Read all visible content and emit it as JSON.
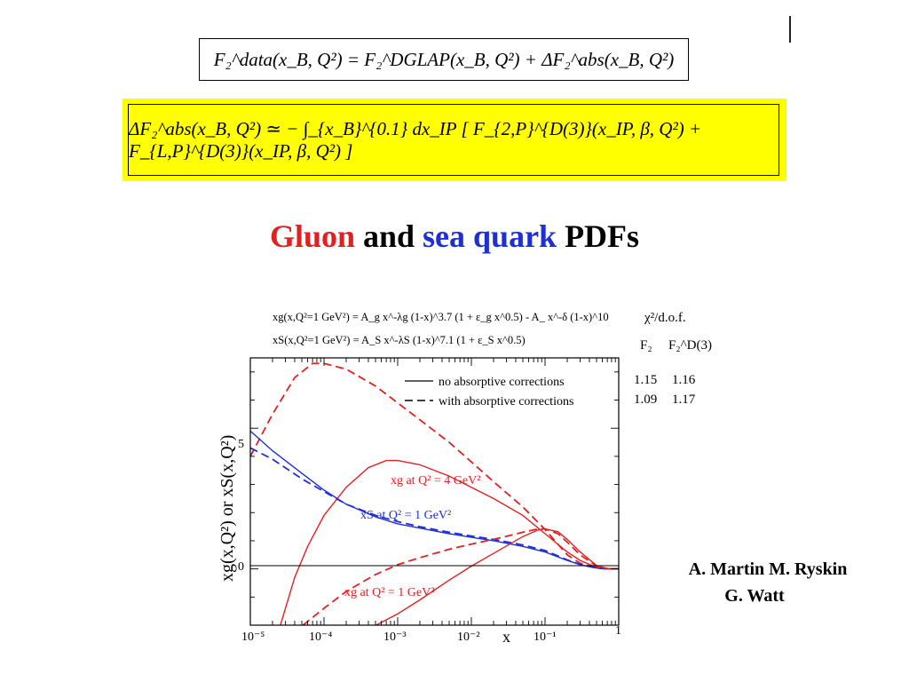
{
  "equations": {
    "eq1": "F₂^data(x_B, Q²) = F₂^DGLAP(x_B, Q²) + ΔF₂^abs(x_B, Q²)",
    "eq2": "ΔF₂^abs(x_B, Q²) ≃ − ∫_{x_B}^{0.1} dx_IP [ F_{2,P}^{D(3)}(x_IP, β, Q²) + F_{L,P}^{D(3)}(x_IP, β, Q²) ]"
  },
  "title": {
    "part1": "Gluon",
    "part2": " and ",
    "part3": "sea quark",
    "part4": " PDFs"
  },
  "chart_data": {
    "type": "line",
    "xlabel": "x",
    "ylabel": "xg(x,Q²)  or  xS(x,Q²)",
    "xscale": "log",
    "xlim": [
      1e-05,
      1
    ],
    "ylim": [
      -2,
      7.5
    ],
    "x_tick_labels": [
      "10⁻⁵",
      "10⁻⁴",
      "10⁻³",
      "10⁻²",
      "10⁻¹",
      "1"
    ],
    "y_tick_labels": [
      "0",
      "5"
    ],
    "formula_lines": [
      "xg(x,Q²=1 GeV²) = A_g x^-λg (1-x)^3.7 (1 + ε_g x^0.5) - A_ x^-δ (1-x)^10",
      "xS(x,Q²=1 GeV²) = A_S x^-λS (1-x)^7.1 (1 + ε_S x^0.5)"
    ],
    "legend": [
      {
        "label": "no absorptive corrections",
        "style": "solid"
      },
      {
        "label": "with absorptive corrections",
        "style": "dashed"
      }
    ],
    "chi2_table": {
      "header": "χ²/d.o.f.",
      "columns": [
        "F₂",
        "F₂^D(3)"
      ],
      "rows": [
        [
          "1.15",
          "1.16"
        ],
        [
          "1.09",
          "1.17"
        ]
      ]
    },
    "annotations": [
      "xg at Q² = 4 GeV²",
      "xS at Q² = 1 GeV²",
      "xg at Q² = 1 GeV²"
    ],
    "colors": {
      "gluon": "#e32020",
      "sea": "#1f2fd6"
    },
    "series": [
      {
        "group": "gluon-Q2-4",
        "color": "red",
        "style": "solid",
        "x": [
          2.56e-05,
          4e-05,
          6e-05,
          0.0001,
          0.0002,
          0.0004,
          0.0007,
          0.001,
          0.002,
          0.005,
          0.01,
          0.02,
          0.05,
          0.1,
          0.2,
          0.3,
          0.5,
          0.7,
          1
        ],
        "y": [
          -2,
          -0.3,
          0.8,
          1.9,
          2.9,
          3.6,
          3.85,
          3.85,
          3.7,
          3.3,
          2.9,
          2.5,
          1.9,
          1.25,
          0.6,
          0.3,
          0.05,
          0,
          0
        ]
      },
      {
        "group": "gluon-Q2-4",
        "color": "red",
        "style": "dashed",
        "x": [
          1e-05,
          2e-05,
          4e-05,
          7e-05,
          0.0001,
          0.0002,
          0.0005,
          0.001,
          0.002,
          0.005,
          0.01,
          0.02,
          0.05,
          0.1,
          0.2,
          0.3,
          0.5,
          0.7,
          1
        ],
        "y": [
          4,
          5.5,
          6.8,
          7.3,
          7.3,
          7.1,
          6.5,
          5.9,
          5.3,
          4.5,
          3.8,
          3.1,
          2.2,
          1.4,
          0.5,
          0.2,
          0.03,
          0,
          0
        ]
      },
      {
        "group": "sea-Q2-1",
        "color": "blue",
        "style": "solid",
        "x": [
          1e-05,
          2e-05,
          5e-05,
          0.0001,
          0.0002,
          0.0005,
          0.001,
          0.002,
          0.005,
          0.01,
          0.02,
          0.05,
          0.1,
          0.2,
          0.3,
          0.5,
          0.7,
          1
        ],
        "y": [
          4.9,
          4.2,
          3.4,
          2.8,
          2.3,
          1.85,
          1.6,
          1.45,
          1.25,
          1.12,
          1.0,
          0.8,
          0.6,
          0.3,
          0.15,
          0.03,
          0,
          0
        ]
      },
      {
        "group": "sea-Q2-1",
        "color": "blue",
        "style": "dashed",
        "x": [
          1e-05,
          2e-05,
          5e-05,
          0.0001,
          0.0002,
          0.0005,
          0.001,
          0.002,
          0.005,
          0.01,
          0.02,
          0.05,
          0.1,
          0.2,
          0.3,
          0.5,
          0.7,
          1
        ],
        "y": [
          4.3,
          3.9,
          3.2,
          2.75,
          2.3,
          1.9,
          1.68,
          1.5,
          1.3,
          1.17,
          1.05,
          0.85,
          0.65,
          0.32,
          0.16,
          0.03,
          0,
          0
        ]
      },
      {
        "group": "gluon-Q2-1",
        "color": "red",
        "style": "solid",
        "x": [
          0.00051,
          0.001,
          0.002,
          0.005,
          0.01,
          0.02,
          0.05,
          0.08,
          0.1,
          0.15,
          0.2,
          0.3,
          0.5,
          0.7,
          1
        ],
        "y": [
          -2,
          -1.6,
          -1.1,
          -0.4,
          0.1,
          0.55,
          1.15,
          1.38,
          1.42,
          1.32,
          1.05,
          0.6,
          0.12,
          0.01,
          0
        ]
      },
      {
        "group": "gluon-Q2-1",
        "color": "red",
        "style": "dashed",
        "x": [
          5.2e-05,
          0.0001,
          0.0002,
          0.0005,
          0.001,
          0.002,
          0.005,
          0.01,
          0.02,
          0.05,
          0.08,
          0.1,
          0.15,
          0.2,
          0.3,
          0.5,
          0.7,
          1
        ],
        "y": [
          -2,
          -1.4,
          -0.8,
          -0.2,
          0.15,
          0.4,
          0.7,
          0.88,
          1.05,
          1.3,
          1.42,
          1.42,
          1.25,
          0.95,
          0.5,
          0.1,
          0.01,
          0
        ]
      }
    ]
  },
  "authors": {
    "line1": "A. Martin  M. Ryskin",
    "line2": "G. Watt"
  }
}
